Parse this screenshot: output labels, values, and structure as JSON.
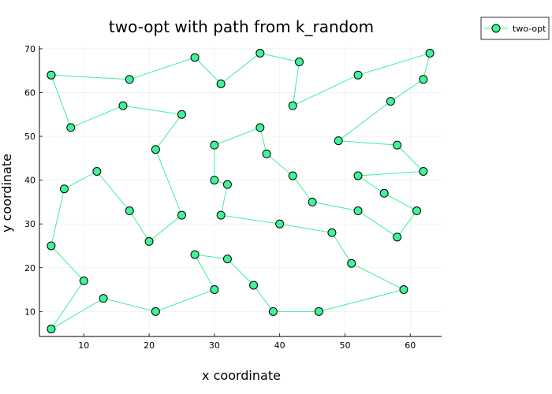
{
  "chart_data": {
    "type": "line",
    "title": "two-opt with path from k_random",
    "xlabel": "x coordinate",
    "ylabel": "y coordinate",
    "xlim": [
      3.2,
      64.8
    ],
    "ylim": [
      4.3,
      70.7
    ],
    "xticks": [
      10,
      20,
      30,
      40,
      50,
      60
    ],
    "yticks": [
      10,
      20,
      30,
      40,
      50,
      60,
      70
    ],
    "grid": true,
    "legend_position": "top-right",
    "markers": true,
    "colors": {
      "line": "#3cf09c",
      "marker_fill": "#3ef399",
      "marker_edge": "#000000"
    },
    "series": [
      {
        "name": "two-opt",
        "points": [
          [
            5,
            64
          ],
          [
            17,
            63
          ],
          [
            27,
            68
          ],
          [
            31,
            62
          ],
          [
            37,
            69
          ],
          [
            43,
            67
          ],
          [
            42,
            57
          ],
          [
            52,
            64
          ],
          [
            63,
            69
          ],
          [
            62,
            63
          ],
          [
            57,
            58
          ],
          [
            49,
            49
          ],
          [
            58,
            48
          ],
          [
            62,
            42
          ],
          [
            52,
            41
          ],
          [
            56,
            37
          ],
          [
            61,
            33
          ],
          [
            58,
            27
          ],
          [
            52,
            33
          ],
          [
            45,
            35
          ],
          [
            42,
            41
          ],
          [
            38,
            46
          ],
          [
            37,
            52
          ],
          [
            30,
            48
          ],
          [
            30,
            40
          ],
          [
            32,
            39
          ],
          [
            31,
            32
          ],
          [
            40,
            30
          ],
          [
            48,
            28
          ],
          [
            51,
            21
          ],
          [
            59,
            15
          ],
          [
            46,
            10
          ],
          [
            39,
            10
          ],
          [
            36,
            16
          ],
          [
            32,
            22
          ],
          [
            27,
            23
          ],
          [
            30,
            15
          ],
          [
            21,
            10
          ],
          [
            13,
            13
          ],
          [
            5,
            6
          ],
          [
            10,
            17
          ],
          [
            5,
            25
          ],
          [
            7,
            38
          ],
          [
            12,
            42
          ],
          [
            17,
            33
          ],
          [
            20,
            26
          ],
          [
            25,
            32
          ],
          [
            21,
            47
          ],
          [
            25,
            55
          ],
          [
            16,
            57
          ],
          [
            8,
            52
          ],
          [
            5,
            64
          ]
        ]
      }
    ]
  }
}
